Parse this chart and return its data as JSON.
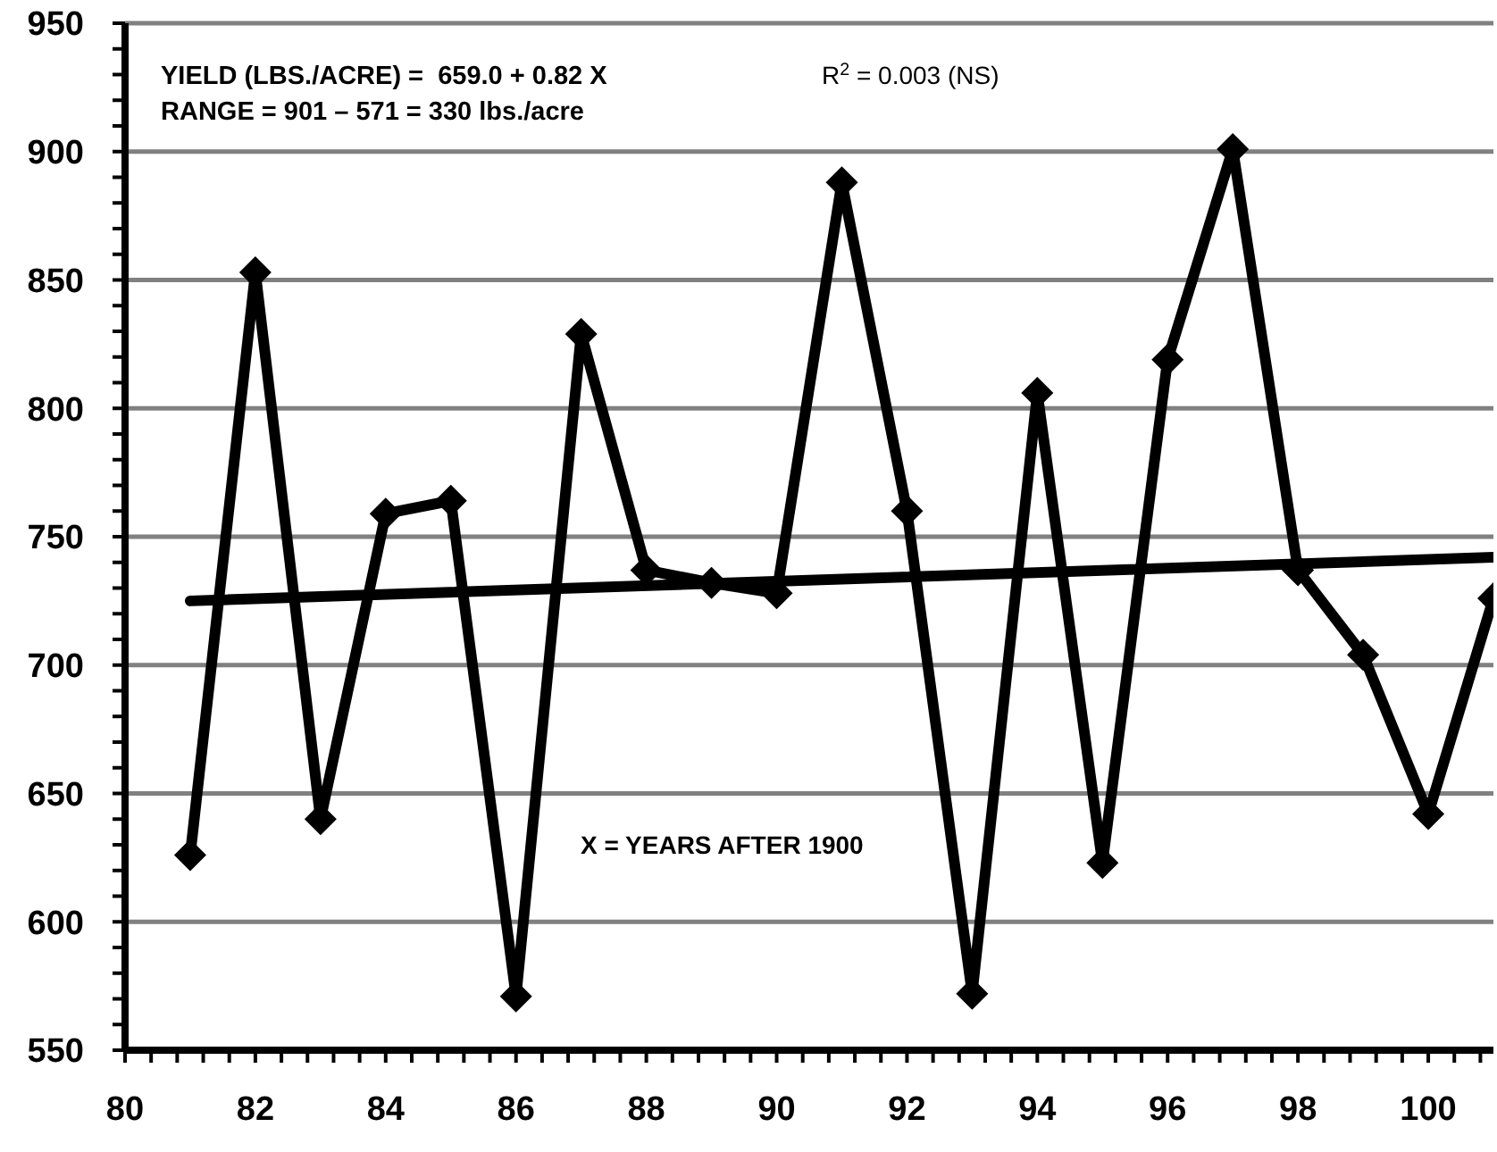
{
  "chart_data": {
    "type": "line",
    "annotations": [
      "YIELD (LBS./ACRE) =  659.0 + 0.82 X",
      "RANGE = 901 – 571 = 330 lbs./acre",
      "R$^{2}$ = 0.003 (NS)",
      "X = YEARS AFTER 1900"
    ],
    "x": [
      81,
      82,
      83,
      84,
      85,
      86,
      87,
      88,
      89,
      90,
      91,
      92,
      93,
      94,
      95,
      96,
      97,
      98,
      99,
      100,
      101
    ],
    "series": [
      {
        "color": "#000000",
        "marker": "diamond",
        "values": [
          626,
          853,
          640,
          759,
          764,
          571,
          829,
          737,
          732,
          728,
          888,
          760,
          572,
          806,
          623,
          819,
          901,
          737,
          704,
          642,
          726
        ]
      },
      {
        "type": "line",
        "color": "#000000",
        "marker": "none",
        "x": [
          81,
          101
        ],
        "values": [
          725,
          742
        ]
      }
    ],
    "xlim": [
      80,
      101
    ],
    "xticks": [
      80,
      {
        "value": 80.4,
        "label": null
      },
      {
        "value": 80.8,
        "label": null
      },
      {
        "value": 81.2,
        "label": null
      },
      {
        "value": 81.6,
        "label": null
      },
      82,
      {
        "value": 82.4,
        "label": null
      },
      {
        "value": 82.8,
        "label": null
      },
      {
        "value": 83.2,
        "label": null
      },
      {
        "value": 83.6,
        "label": null
      },
      84,
      {
        "value": 84.4,
        "label": null
      },
      {
        "value": 84.8,
        "label": null
      },
      {
        "value": 85.2,
        "label": null
      },
      {
        "value": 85.6,
        "label": null
      },
      86,
      {
        "value": 86.4,
        "label": null
      },
      {
        "value": 86.8,
        "label": null
      },
      {
        "value": 87.2,
        "label": null
      },
      {
        "value": 87.6,
        "label": null
      },
      88,
      {
        "value": 88.4,
        "label": null
      },
      {
        "value": 88.8,
        "label": null
      },
      {
        "value": 89.2,
        "label": null
      },
      {
        "value": 89.6,
        "label": null
      },
      90,
      {
        "value": 90.4,
        "label": null
      },
      {
        "value": 90.8,
        "label": null
      },
      {
        "value": 91.2,
        "label": null
      },
      {
        "value": 91.6,
        "label": null
      },
      92,
      {
        "value": 92.4,
        "label": null
      },
      {
        "value": 92.8,
        "label": null
      },
      {
        "value": 93.2,
        "label": null
      },
      {
        "value": 93.6,
        "label": null
      },
      94,
      {
        "value": 94.4,
        "label": null
      },
      {
        "value": 94.8,
        "label": null
      },
      {
        "value": 95.2,
        "label": null
      },
      {
        "value": 95.6,
        "label": null
      },
      96,
      {
        "value": 96.4,
        "label": null
      },
      {
        "value": 96.8,
        "label": null
      },
      {
        "value": 97.2,
        "label": null
      },
      {
        "value": 97.6,
        "label": null
      },
      98,
      {
        "value": 98.4,
        "label": null
      },
      {
        "value": 98.8,
        "label": null
      },
      {
        "value": 99.2,
        "label": null
      },
      {
        "value": 99.6,
        "label": null
      },
      100,
      {
        "value": 100.4,
        "label": null
      },
      {
        "value": 100.8,
        "label": null
      }
    ],
    "ylim": [
      550,
      950
    ],
    "yticks": [
      550,
      {
        "value": 560,
        "label": null
      },
      {
        "value": 570,
        "label": null
      },
      {
        "value": 580,
        "label": null
      },
      {
        "value": 590,
        "label": null
      },
      600,
      {
        "value": 610,
        "label": null
      },
      {
        "value": 620,
        "label": null
      },
      {
        "value": 630,
        "label": null
      },
      {
        "value": 640,
        "label": null
      },
      650,
      {
        "value": 660,
        "label": null
      },
      {
        "value": 670,
        "label": null
      },
      {
        "value": 680,
        "label": null
      },
      {
        "value": 690,
        "label": null
      },
      700,
      {
        "value": 710,
        "label": null
      },
      {
        "value": 720,
        "label": null
      },
      {
        "value": 730,
        "label": null
      },
      {
        "value": 740,
        "label": null
      },
      750,
      {
        "value": 760,
        "label": null
      },
      {
        "value": 770,
        "label": null
      },
      {
        "value": 780,
        "label": null
      },
      {
        "value": 790,
        "label": null
      },
      800,
      {
        "value": 810,
        "label": null
      },
      {
        "value": 820,
        "label": null
      },
      {
        "value": 830,
        "label": null
      },
      {
        "value": 840,
        "label": null
      },
      850,
      {
        "value": 860,
        "label": null
      },
      {
        "value": 870,
        "label": null
      },
      {
        "value": 880,
        "label": null
      },
      {
        "value": 890,
        "label": null
      },
      900,
      {
        "value": 910,
        "label": null
      },
      {
        "value": 920,
        "label": null
      },
      {
        "value": 930,
        "label": null
      },
      {
        "value": 940,
        "label": null
      },
      950
    ],
    "grid": "y"
  }
}
